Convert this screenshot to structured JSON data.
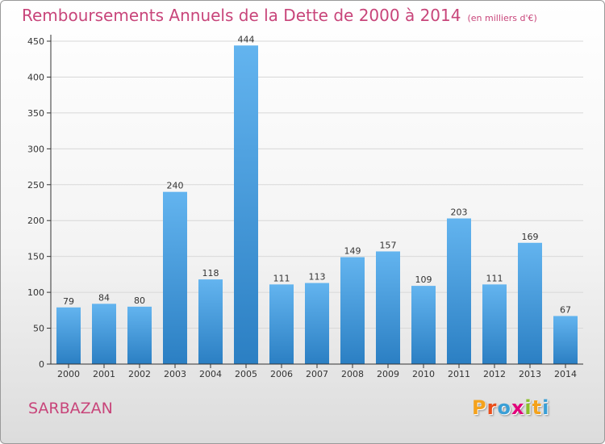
{
  "header": {
    "title": "Remboursements Annuels de la Dette de 2000 à 2014",
    "unit_note": "(en milliers d'€)"
  },
  "footer": {
    "commune": "SARBAZAN",
    "logo_text": "Proxiti",
    "logo_letter_colors": [
      "#f4a21c",
      "#e94e1b",
      "#3a9fd6",
      "#e2007a",
      "#8cbe2a",
      "#f4a21c",
      "#3a9fd6"
    ]
  },
  "colors": {
    "title": "#c8457a",
    "bar_light": "#63b4ef",
    "bar_dark": "#2b7fc3",
    "axis": "#333333",
    "grid": "#d8d8d8"
  },
  "chart_data": {
    "type": "bar",
    "title": "Remboursements Annuels de la Dette de 2000 à 2014",
    "subtitle": "(en milliers d'€)",
    "categories": [
      "2000",
      "2001",
      "2002",
      "2003",
      "2004",
      "2005",
      "2006",
      "2007",
      "2008",
      "2009",
      "2010",
      "2011",
      "2012",
      "2013",
      "2014"
    ],
    "values": [
      79,
      84,
      80,
      240,
      118,
      444,
      111,
      113,
      149,
      157,
      109,
      203,
      111,
      169,
      67
    ],
    "ylim": [
      0,
      450
    ],
    "yticks": [
      0,
      50,
      100,
      150,
      200,
      250,
      300,
      350,
      400,
      450
    ],
    "grid": true,
    "xlabel": "",
    "ylabel": ""
  }
}
